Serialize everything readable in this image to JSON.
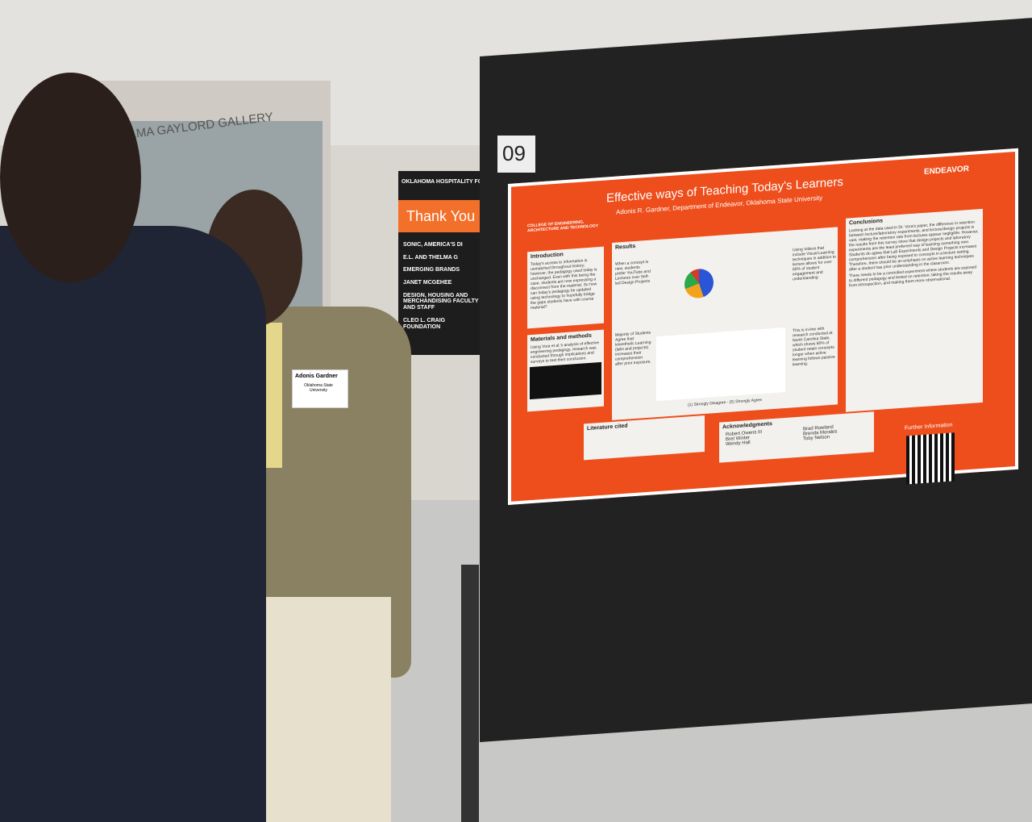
{
  "wall_sign": "ELMA GAYLORD GALLERY",
  "donor_board": {
    "heading": "OKLAHOMA HOSPITALITY FOU",
    "banner": "Thank You",
    "lines": [
      "SONIC, AMERICA'S DI",
      "E.L. AND THELMA G",
      "EMERGING BRANDS",
      "JANET MCGEHEE",
      "DESIGN, HOUSING AND MERCHANDISING FACULTY AND STAFF",
      "CLEO L. CRAIG FOUNDATION"
    ]
  },
  "name_tag": {
    "name": "Adonis Gardner",
    "school": "Oklahoma State University"
  },
  "board_number": "09",
  "poster": {
    "title": "Effective ways of Teaching Today's Learners",
    "author": "Adonis R. Gardner, Department of Endeavor, Oklahoma State University",
    "college": "COLLEGE OF ENGINEERING, ARCHITECTURE AND TECHNOLOGY",
    "program": "ENDEAVOR",
    "introduction": {
      "heading": "Introduction",
      "text": "Today's access to information is unmatched throughout history; however, the pedagogy used today is unchanged. Even with this being the case, students are now expressing a disconnect from the material. So how can today's pedagogy be updated using technology to hopefully bridge the gaps students have with course material?"
    },
    "methods": {
      "heading": "Materials and methods",
      "text": "Using Vora et al.'s analysis of effective engineering pedagogy, research was conducted through implications and surveys to test their conclusion."
    },
    "results": {
      "heading": "Results",
      "notes": [
        "When a concept is new, students prefer YouTube and Lectures over Self-led Design Projects",
        "Using Videos that include Visual Learning techniques in addition to lecture allows for over 60% of student engagement and understanding",
        "Majority of Students Agree that kinesthetic Learning (labs and projects) increases their comprehension after prior exposure.",
        "This is in-line with research conducted at North Carolina State, which shows 60% of student retain concepts longer when active learning follows passive learning."
      ],
      "scale": "(1) Strongly Disagree - (5) Strongly Agree"
    },
    "conclusions": {
      "heading": "Conclusions",
      "paragraphs": [
        "Looking at the data used in Dr. Vora's paper, the difference in retention between lecture/laboratory experiments, and lecture/design projects is vast, making the retention rate from lectures appear negligible. However, the results from this survey show that design projects and laboratory experiments are the least preferred way of learning something new. Students do agree that Lab Experiments and Design Projects increases comprehension after being exposed to concepts in a lecture setting. Therefore, there should be an emphasis on active learning techniques after a student has prior understanding in the classroom.",
        "There needs to be a controlled experiment where students are exposed to different pedagogy and tested on retention; taking the results away from introspection, and making them more observational."
      ]
    },
    "literature": {
      "heading": "Literature cited"
    },
    "acknowledgments": {
      "heading": "Acknowledgments",
      "names": [
        "Robert Owens III",
        "Bret Winter",
        "Wendy Hall",
        "Brad Rowland",
        "Brenda Morales",
        "Toby Nelson"
      ]
    },
    "further": "Further Information"
  }
}
